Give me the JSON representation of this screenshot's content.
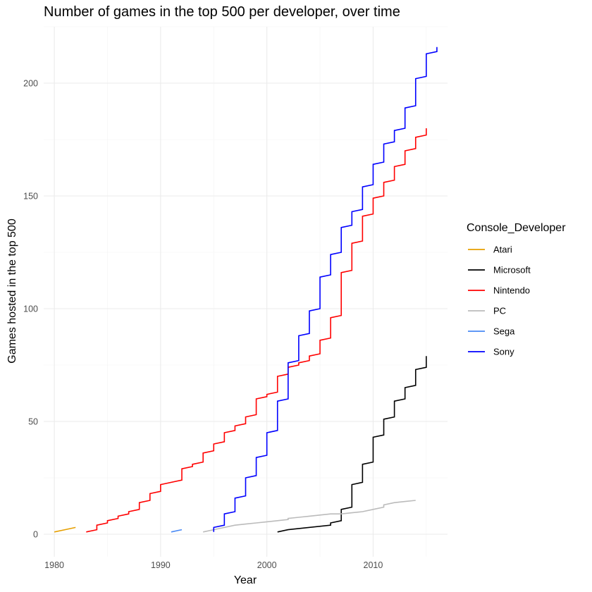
{
  "chart_data": {
    "type": "line",
    "title": "Number of games in the top 500 per developer, over time",
    "xlabel": "Year",
    "ylabel": "Games hosted in the top 500",
    "xlim": [
      1979,
      2017
    ],
    "ylim": [
      -10,
      225
    ],
    "xticks": [
      1980,
      1990,
      2000,
      2010
    ],
    "yticks": [
      0,
      50,
      100,
      150,
      200
    ],
    "grid": true,
    "legend_title": "Console_Developer",
    "legend_position": "right",
    "series": [
      {
        "name": "Atari",
        "color": "#E69F00",
        "points": [
          [
            1980,
            1
          ],
          [
            1981,
            2
          ],
          [
            1982,
            3
          ]
        ]
      },
      {
        "name": "Microsoft",
        "color": "#000000",
        "points": [
          [
            2001,
            1
          ],
          [
            2001,
            1
          ],
          [
            2002,
            2
          ],
          [
            2006,
            4
          ],
          [
            2006,
            5
          ],
          [
            2007,
            6
          ],
          [
            2007,
            11
          ],
          [
            2008,
            12
          ],
          [
            2008,
            22
          ],
          [
            2009,
            23
          ],
          [
            2009,
            31
          ],
          [
            2010,
            32
          ],
          [
            2010,
            43
          ],
          [
            2011,
            44
          ],
          [
            2011,
            51
          ],
          [
            2012,
            52
          ],
          [
            2012,
            59
          ],
          [
            2013,
            60
          ],
          [
            2013,
            65
          ],
          [
            2014,
            66
          ],
          [
            2014,
            73
          ],
          [
            2015,
            74
          ],
          [
            2015,
            79
          ]
        ]
      },
      {
        "name": "Nintendo",
        "color": "#FF0000",
        "points": [
          [
            1983,
            1
          ],
          [
            1984,
            2
          ],
          [
            1984,
            4
          ],
          [
            1985,
            5
          ],
          [
            1985,
            6
          ],
          [
            1986,
            7
          ],
          [
            1986,
            8
          ],
          [
            1987,
            9
          ],
          [
            1987,
            10
          ],
          [
            1988,
            11
          ],
          [
            1988,
            14
          ],
          [
            1989,
            15
          ],
          [
            1989,
            18
          ],
          [
            1990,
            19
          ],
          [
            1990,
            22
          ],
          [
            1992,
            24
          ],
          [
            1992,
            29
          ],
          [
            1993,
            30
          ],
          [
            1993,
            31
          ],
          [
            1994,
            32
          ],
          [
            1994,
            36
          ],
          [
            1995,
            37
          ],
          [
            1995,
            40
          ],
          [
            1996,
            41
          ],
          [
            1996,
            45
          ],
          [
            1997,
            46
          ],
          [
            1997,
            48
          ],
          [
            1998,
            49
          ],
          [
            1998,
            52
          ],
          [
            1999,
            53
          ],
          [
            1999,
            60
          ],
          [
            2000,
            61
          ],
          [
            2000,
            62
          ],
          [
            2001,
            63
          ],
          [
            2001,
            70
          ],
          [
            2002,
            71
          ],
          [
            2002,
            74
          ],
          [
            2003,
            75
          ],
          [
            2003,
            76
          ],
          [
            2004,
            77
          ],
          [
            2004,
            79
          ],
          [
            2005,
            80
          ],
          [
            2005,
            86
          ],
          [
            2006,
            87
          ],
          [
            2006,
            96
          ],
          [
            2007,
            97
          ],
          [
            2007,
            116
          ],
          [
            2008,
            117
          ],
          [
            2008,
            129
          ],
          [
            2009,
            130
          ],
          [
            2009,
            141
          ],
          [
            2010,
            142
          ],
          [
            2010,
            149
          ],
          [
            2011,
            150
          ],
          [
            2011,
            156
          ],
          [
            2012,
            157
          ],
          [
            2012,
            163
          ],
          [
            2013,
            164
          ],
          [
            2013,
            170
          ],
          [
            2014,
            171
          ],
          [
            2014,
            176
          ],
          [
            2015,
            177
          ],
          [
            2015,
            180
          ]
        ]
      },
      {
        "name": "PC",
        "color": "#BBBBBB",
        "points": [
          [
            1994,
            1
          ],
          [
            1995,
            2
          ],
          [
            1996,
            3
          ],
          [
            1997,
            4
          ],
          [
            1998,
            4.5
          ],
          [
            1999,
            5
          ],
          [
            2000,
            5.5
          ],
          [
            2001,
            6
          ],
          [
            2002,
            6.5
          ],
          [
            2002,
            7
          ],
          [
            2003,
            7.5
          ],
          [
            2004,
            8
          ],
          [
            2005,
            8.5
          ],
          [
            2006,
            9
          ],
          [
            2007,
            9
          ],
          [
            2008,
            9.5
          ],
          [
            2009,
            10
          ],
          [
            2010,
            11
          ],
          [
            2011,
            12
          ],
          [
            2011,
            13
          ],
          [
            2012,
            14
          ],
          [
            2013,
            14.5
          ],
          [
            2014,
            15
          ]
        ]
      },
      {
        "name": "Sega",
        "color": "#4A8AF5",
        "points": [
          [
            1991,
            1
          ],
          [
            1992,
            2
          ]
        ]
      },
      {
        "name": "Sony",
        "color": "#0000FF",
        "points": [
          [
            1995,
            1
          ],
          [
            1995,
            3
          ],
          [
            1996,
            4
          ],
          [
            1996,
            9
          ],
          [
            1997,
            10
          ],
          [
            1997,
            16
          ],
          [
            1998,
            17
          ],
          [
            1998,
            25
          ],
          [
            1999,
            26
          ],
          [
            1999,
            34
          ],
          [
            2000,
            35
          ],
          [
            2000,
            45
          ],
          [
            2001,
            46
          ],
          [
            2001,
            59
          ],
          [
            2002,
            60
          ],
          [
            2002,
            76
          ],
          [
            2003,
            77
          ],
          [
            2003,
            88
          ],
          [
            2004,
            89
          ],
          [
            2004,
            99
          ],
          [
            2005,
            100
          ],
          [
            2005,
            114
          ],
          [
            2006,
            115
          ],
          [
            2006,
            124
          ],
          [
            2007,
            125
          ],
          [
            2007,
            136
          ],
          [
            2008,
            137
          ],
          [
            2008,
            143
          ],
          [
            2009,
            144
          ],
          [
            2009,
            154
          ],
          [
            2010,
            155
          ],
          [
            2010,
            164
          ],
          [
            2011,
            165
          ],
          [
            2011,
            173
          ],
          [
            2012,
            174
          ],
          [
            2012,
            179
          ],
          [
            2013,
            180
          ],
          [
            2013,
            189
          ],
          [
            2014,
            190
          ],
          [
            2014,
            202
          ],
          [
            2015,
            203
          ],
          [
            2015,
            213
          ],
          [
            2016,
            214
          ],
          [
            2016,
            216
          ]
        ]
      }
    ]
  }
}
